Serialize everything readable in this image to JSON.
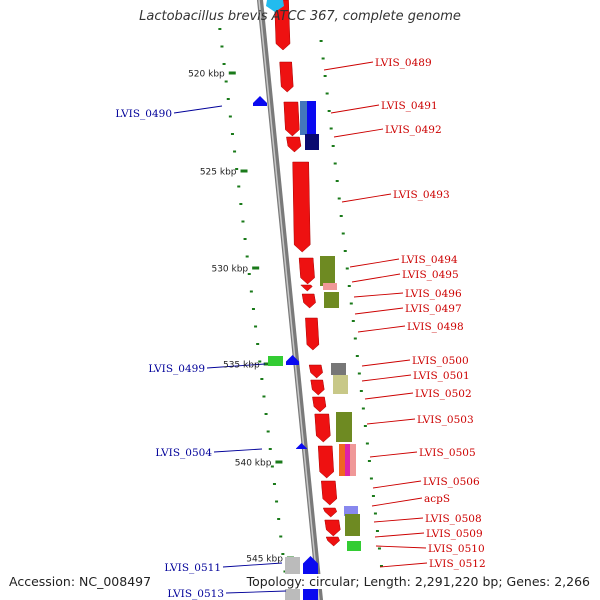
{
  "title": "Lactobacillus brevis ATCC 367, complete genome",
  "footer": {
    "accession": "Accession: NC_008497",
    "summary": "Topology: circular; Length: 2,291,220 bp; Genes: 2,266"
  },
  "colors": {
    "backbone": "#8a8a8a",
    "forward_gene": "#ee1111",
    "reverse_gene": "#0a0af0",
    "forward_label": "#cc0000",
    "reverse_label": "#000099",
    "green_mark": "#1a8a1a",
    "tick": "#1a7a1a"
  },
  "kbp_ticks": [
    {
      "label": "520 kbp"
    },
    {
      "label": "525 kbp"
    },
    {
      "label": "530 kbp"
    },
    {
      "label": "535 kbp"
    },
    {
      "label": "540 kbp"
    },
    {
      "label": "545 kbp"
    }
  ],
  "forward_labels": [
    "LVIS_0489",
    "LVIS_0491",
    "LVIS_0492",
    "LVIS_0493",
    "LVIS_0494",
    "LVIS_0495",
    "LVIS_0496",
    "LVIS_0497",
    "LVIS_0498",
    "LVIS_0500",
    "LVIS_0501",
    "LVIS_0502",
    "LVIS_0503",
    "LVIS_0505",
    "LVIS_0506",
    "acpS",
    "LVIS_0508",
    "LVIS_0509",
    "LVIS_0510",
    "LVIS_0512"
  ],
  "reverse_labels": [
    "LVIS_0490",
    "LVIS_0499",
    "LVIS_0504",
    "LVIS_0511",
    "LVIS_0513"
  ],
  "feature_colors": {
    "cog_olive": "#6e8a22",
    "cog_steel": "#4477bb",
    "cog_navy": "#0a0a70",
    "cog_pink": "#f09898",
    "cog_khaki": "#c8c888",
    "cog_gray": "#777777",
    "cog_orange": "#f06622",
    "cog_magenta": "#dd22aa",
    "cog_lavender": "#8888ee",
    "cog_green": "#33cc33",
    "cog_silver": "#bbbbbb",
    "cog_cyan": "#22bbee"
  }
}
